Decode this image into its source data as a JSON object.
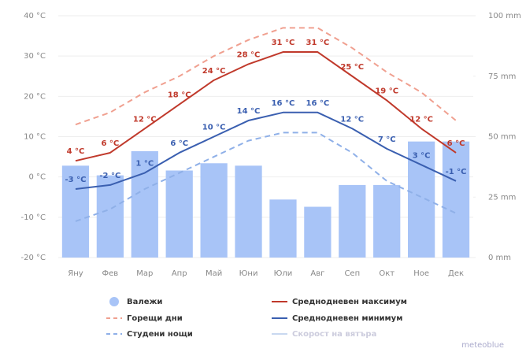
{
  "chart_data": {
    "type": "combo",
    "categories": [
      "Яну",
      "Фев",
      "Мар",
      "Апр",
      "Май",
      "Юни",
      "Юли",
      "Авг",
      "Сеп",
      "Окт",
      "Ное",
      "Дек"
    ],
    "ylim": [
      -20,
      40
    ],
    "yticks": [
      {
        "value": -20,
        "label": "-20 °C"
      },
      {
        "value": -10,
        "label": "-10 °C"
      },
      {
        "value": 0,
        "label": "0 °C"
      },
      {
        "value": 10,
        "label": "10 °C"
      },
      {
        "value": 20,
        "label": "20 °C"
      },
      {
        "value": 30,
        "label": "30 °C"
      },
      {
        "value": 40,
        "label": "40 °C"
      }
    ],
    "y2lim": [
      0,
      100
    ],
    "y2ticks": [
      {
        "value": 0,
        "label": "0 mm"
      },
      {
        "value": 25,
        "label": "25 mm"
      },
      {
        "value": 50,
        "label": "50 mm"
      },
      {
        "value": 75,
        "label": "75 mm"
      },
      {
        "value": 100,
        "label": "100 mm"
      }
    ],
    "series": [
      {
        "name": "Валежи",
        "color": "#a8c4f7",
        "kind": "bar",
        "axis": "y2",
        "values": [
          38,
          34,
          44,
          36,
          39,
          38,
          24,
          21,
          30,
          30,
          48,
          48
        ]
      },
      {
        "name": "Среднодневен максимум",
        "color": "#c0392b",
        "kind": "line",
        "dash": false,
        "values": [
          4,
          6,
          12,
          18,
          24,
          28,
          31,
          31,
          25,
          19,
          12,
          6
        ],
        "value_labels": [
          "4 °C",
          "6 °C",
          "12 °C",
          "18 °C",
          "24 °C",
          "28 °C",
          "31 °C",
          "31 °C",
          "25 °C",
          "19 °C",
          "12 °C",
          "6 °C"
        ]
      },
      {
        "name": "Среднодневен минимум",
        "color": "#3a5fb0",
        "kind": "line",
        "dash": false,
        "values": [
          -3,
          -2,
          1,
          6,
          10,
          14,
          16,
          16,
          12,
          7,
          3,
          -1
        ],
        "value_labels": [
          "-3 °C",
          "-2 °C",
          "1 °C",
          "6 °C",
          "10 °C",
          "14 °C",
          "16 °C",
          "16 °C",
          "12 °C",
          "7 °C",
          "3 °C",
          "-1 °C"
        ]
      },
      {
        "name": "Горещи дни",
        "color": "#f0a090",
        "kind": "line",
        "dash": true,
        "values": [
          13,
          16,
          21,
          25,
          30,
          34,
          37,
          37,
          32,
          26,
          21,
          14
        ]
      },
      {
        "name": "Студени нощи",
        "color": "#8fb0e8",
        "kind": "line",
        "dash": true,
        "values": [
          -11,
          -8,
          -3,
          1,
          5,
          9,
          11,
          11,
          6,
          -1,
          -5,
          -9
        ]
      }
    ],
    "legend_extra": {
      "name": "Скорост на вятъра",
      "color": "#c9d8f0"
    },
    "watermark": "meteoblue"
  }
}
